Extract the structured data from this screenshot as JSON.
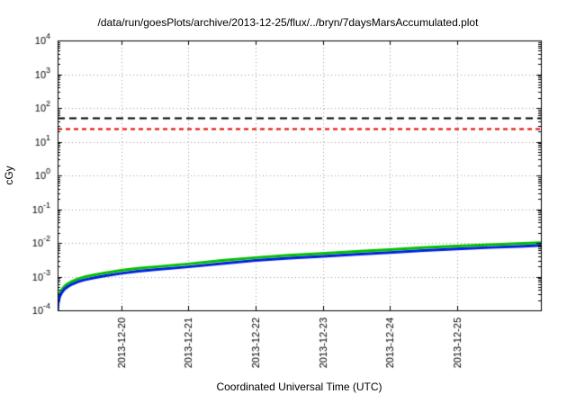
{
  "page": {
    "background": "#ffffff"
  },
  "chart_data": {
    "type": "line",
    "title": "/data/run/goesPlots/archive/2013-12-25/flux/../bryn/7daysMarsAccumulated.plot",
    "xlabel": "Coordinated Universal Time (UTC)",
    "ylabel": "cGy",
    "y_scale": "log",
    "ylim": [
      0.0001,
      10000.0
    ],
    "xlim": [
      0,
      7.2
    ],
    "grid": true,
    "grid_color": "#9a9a9a",
    "x_ticks": [
      {
        "x": 0.95,
        "label": "2013-12-20"
      },
      {
        "x": 1.95,
        "label": "2013-12-21"
      },
      {
        "x": 2.95,
        "label": "2013-12-22"
      },
      {
        "x": 3.95,
        "label": "2013-12-23"
      },
      {
        "x": 4.95,
        "label": "2013-12-24"
      },
      {
        "x": 5.95,
        "label": "2013-12-25"
      }
    ],
    "reference_lines": [
      {
        "name": "black-dashed-threshold",
        "value": 50,
        "color": "#000000",
        "dash": [
          8,
          5
        ],
        "width": 2.2
      },
      {
        "name": "red-dashed-threshold",
        "value": 25,
        "color": "#e00000",
        "dash": [
          5,
          4
        ],
        "width": 1.8
      }
    ],
    "series": [
      {
        "name": "accumulated-dose-green",
        "color": "#00c000",
        "width": 3,
        "x": [
          0,
          0.01,
          0.03,
          0.06,
          0.1,
          0.15,
          0.22,
          0.3,
          0.4,
          0.55,
          0.7,
          0.95,
          1.2,
          1.45,
          1.95,
          2.45,
          2.95,
          3.45,
          3.95,
          4.45,
          4.95,
          5.45,
          5.95,
          6.45,
          6.95,
          7.2
        ],
        "y": [
          0.0001,
          0.00021,
          0.00031,
          0.0004,
          0.00051,
          0.00061,
          0.00073,
          0.00085,
          0.00098,
          0.00113,
          0.00128,
          0.00153,
          0.00177,
          0.00195,
          0.00238,
          0.003,
          0.00366,
          0.00427,
          0.00488,
          0.0056,
          0.00634,
          0.0072,
          0.00805,
          0.0089,
          0.00975,
          0.0102
        ]
      },
      {
        "name": "accumulated-dose-blue",
        "color": "#0020e0",
        "width": 3,
        "x": [
          0,
          0.01,
          0.03,
          0.06,
          0.1,
          0.15,
          0.22,
          0.3,
          0.4,
          0.55,
          0.7,
          0.95,
          1.2,
          1.45,
          1.95,
          2.45,
          2.95,
          3.45,
          3.95,
          4.45,
          4.95,
          5.45,
          5.95,
          6.45,
          6.95,
          7.2
        ],
        "y": [
          0.0001,
          0.00017,
          0.00025,
          0.00033,
          0.00042,
          0.0005,
          0.0006,
          0.0007,
          0.0008,
          0.00093,
          0.00105,
          0.00125,
          0.00145,
          0.0016,
          0.00195,
          0.00245,
          0.003,
          0.0035,
          0.004,
          0.0046,
          0.0052,
          0.0059,
          0.0066,
          0.0073,
          0.008,
          0.0084
        ]
      }
    ]
  }
}
